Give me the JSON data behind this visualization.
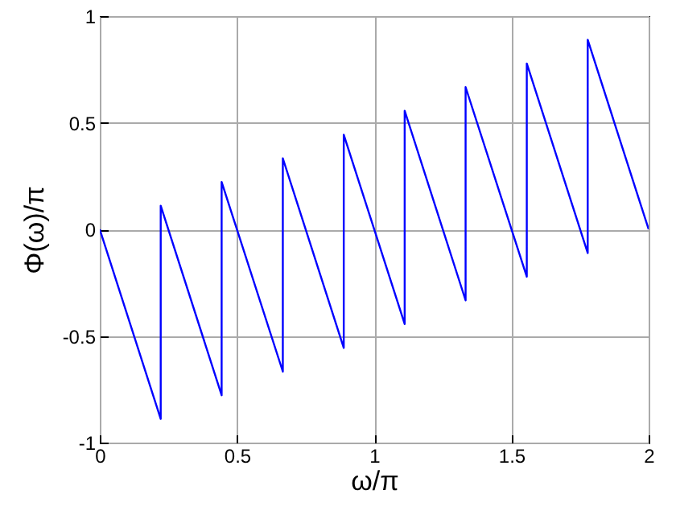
{
  "chart_data": {
    "type": "line",
    "xlabel": "ω/π",
    "ylabel": "Φ(ω)/π",
    "xlim": [
      0,
      2
    ],
    "ylim": [
      -1,
      1
    ],
    "xticks": [
      0,
      0.5,
      1,
      1.5,
      2
    ],
    "yticks": [
      -1,
      -0.5,
      0,
      0.5,
      1
    ],
    "grid": true,
    "series": [
      {
        "color": "#0000ff",
        "x": [
          0,
          0.222,
          0.222,
          0.444,
          0.444,
          0.667,
          0.667,
          0.889,
          0.889,
          1.111,
          1.111,
          1.333,
          1.333,
          1.556,
          1.556,
          1.778,
          1.778,
          2
        ],
        "values": [
          0,
          -0.889,
          0.111,
          -0.778,
          0.222,
          -0.667,
          0.333,
          -0.556,
          0.444,
          -0.444,
          0.556,
          -0.333,
          0.667,
          -0.222,
          0.778,
          -0.111,
          0.889,
          0
        ]
      }
    ]
  }
}
